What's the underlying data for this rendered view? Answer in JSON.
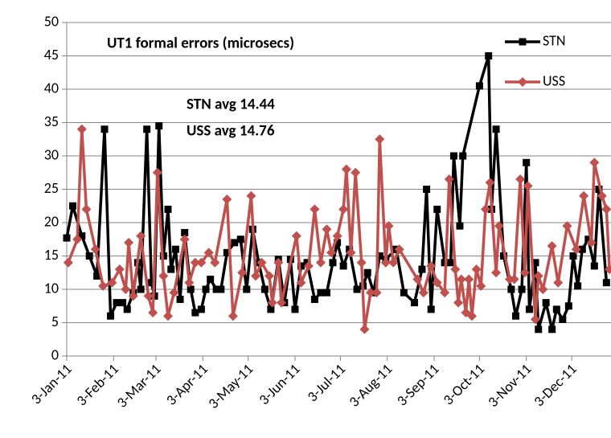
{
  "chart_data": {
    "type": "line",
    "title": "UT1 formal errors (microsecs)",
    "annotations": [
      "STN avg 14.44",
      "USS avg 14.76"
    ],
    "xlim": [
      "2011-01-03",
      "2011-12-29"
    ],
    "xticks": [
      {
        "value": "2011-01-03",
        "label": "3-Jan-11"
      },
      {
        "value": "2011-02-03",
        "label": "3-Feb-11"
      },
      {
        "value": "2011-03-03",
        "label": "3-Mar-11"
      },
      {
        "value": "2011-04-03",
        "label": "3-Apr-11"
      },
      {
        "value": "2011-05-03",
        "label": "3-May-11"
      },
      {
        "value": "2011-06-03",
        "label": "3-Jun-11"
      },
      {
        "value": "2011-07-03",
        "label": "3-Jul-11"
      },
      {
        "value": "2011-08-03",
        "label": "3-Aug-11"
      },
      {
        "value": "2011-09-03",
        "label": "3-Sep-11"
      },
      {
        "value": "2011-10-03",
        "label": "3-Oct-11"
      },
      {
        "value": "2011-11-03",
        "label": "3-Nov-11"
      },
      {
        "value": "2011-12-03",
        "label": "3-Dec-11"
      }
    ],
    "ylim": [
      0,
      50
    ],
    "yticks": [
      0,
      5,
      10,
      15,
      20,
      25,
      30,
      35,
      40,
      45,
      50
    ],
    "grid": true,
    "legend": "upper right",
    "series": [
      {
        "name": "STN",
        "color": "#000000",
        "marker": "square",
        "x": [
          "2011-01-03",
          "2011-01-07",
          "2011-01-13",
          "2011-01-18",
          "2011-01-23",
          "2011-01-28",
          "2011-02-01",
          "2011-02-05",
          "2011-02-09",
          "2011-02-12",
          "2011-02-16",
          "2011-02-19",
          "2011-02-21",
          "2011-02-25",
          "2011-02-28",
          "2011-03-02",
          "2011-03-05",
          "2011-03-08",
          "2011-03-11",
          "2011-03-13",
          "2011-03-16",
          "2011-03-19",
          "2011-03-22",
          "2011-03-26",
          "2011-03-29",
          "2011-04-02",
          "2011-04-05",
          "2011-04-08",
          "2011-04-12",
          "2011-04-15",
          "2011-04-19",
          "2011-04-24",
          "2011-04-28",
          "2011-05-02",
          "2011-05-06",
          "2011-05-10",
          "2011-05-14",
          "2011-05-18",
          "2011-05-23",
          "2011-05-27",
          "2011-05-31",
          "2011-06-03",
          "2011-06-07",
          "2011-06-11",
          "2011-06-16",
          "2011-06-20",
          "2011-06-24",
          "2011-06-28",
          "2011-07-01",
          "2011-07-05",
          "2011-07-09",
          "2011-07-14",
          "2011-07-18",
          "2011-07-21",
          "2011-07-25",
          "2011-07-29",
          "2011-08-02",
          "2011-08-09",
          "2011-08-14",
          "2011-08-21",
          "2011-08-26",
          "2011-08-29",
          "2011-09-01",
          "2011-09-05",
          "2011-09-10",
          "2011-09-14",
          "2011-09-16",
          "2011-09-20",
          "2011-09-22",
          "2011-10-03",
          "2011-10-09",
          "2011-10-11",
          "2011-10-14",
          "2011-10-19",
          "2011-10-24",
          "2011-10-27",
          "2011-10-31",
          "2011-11-03",
          "2011-11-05",
          "2011-11-09",
          "2011-11-11",
          "2011-11-16",
          "2011-11-20",
          "2011-11-23",
          "2011-11-27",
          "2011-12-01",
          "2011-12-04",
          "2011-12-07",
          "2011-12-10",
          "2011-12-14",
          "2011-12-18",
          "2011-12-21",
          "2011-12-26"
        ],
        "values": [
          17.7,
          22.5,
          18,
          15,
          12,
          34,
          6,
          8,
          8,
          7,
          9.5,
          14,
          10,
          34,
          11,
          9,
          34.5,
          15,
          22,
          13,
          16,
          8.5,
          18.5,
          10,
          6.5,
          7,
          10,
          11.5,
          10,
          10,
          15.5,
          17,
          17.5,
          10,
          19,
          14,
          10,
          7,
          14.5,
          8,
          14.5,
          7,
          13.5,
          14,
          8.5,
          9.5,
          9.5,
          14,
          17,
          13.5,
          16,
          10,
          10.5,
          12.5,
          9.5,
          15,
          14.5,
          16,
          9.5,
          8,
          13,
          25,
          7,
          22,
          14,
          14,
          30,
          19.5,
          30,
          40.5,
          45,
          22,
          34,
          15,
          10,
          6,
          10,
          29,
          7,
          14,
          4,
          8,
          4,
          7,
          5.5,
          7.5,
          15,
          10.5,
          16,
          17.5,
          13.5,
          25,
          11
        ]
      },
      {
        "name": "USS",
        "color": "#c0504d",
        "marker": "diamond",
        "x": [
          "2011-01-04",
          "2011-01-10",
          "2011-01-13",
          "2011-01-16",
          "2011-01-22",
          "2011-01-27",
          "2011-02-02",
          "2011-02-07",
          "2011-02-11",
          "2011-02-13",
          "2011-02-16",
          "2011-02-21",
          "2011-02-26",
          "2011-03-01",
          "2011-03-04",
          "2011-03-08",
          "2011-03-11",
          "2011-03-15",
          "2011-03-22",
          "2011-03-25",
          "2011-03-29",
          "2011-04-02",
          "2011-04-07",
          "2011-04-11",
          "2011-04-19",
          "2011-04-23",
          "2011-04-29",
          "2011-05-05",
          "2011-05-08",
          "2011-05-12",
          "2011-05-17",
          "2011-05-19",
          "2011-05-23",
          "2011-05-25",
          "2011-06-04",
          "2011-06-07",
          "2011-06-12",
          "2011-06-16",
          "2011-06-20",
          "2011-06-24",
          "2011-06-27",
          "2011-07-01",
          "2011-07-05",
          "2011-07-07",
          "2011-07-10",
          "2011-07-13",
          "2011-07-17",
          "2011-07-19",
          "2011-07-23",
          "2011-07-27",
          "2011-07-29",
          "2011-08-02",
          "2011-08-04",
          "2011-08-07",
          "2011-08-11",
          "2011-08-23",
          "2011-08-27",
          "2011-09-01",
          "2011-09-05",
          "2011-09-10",
          "2011-09-13",
          "2011-09-17",
          "2011-09-19",
          "2011-09-21",
          "2011-09-24",
          "2011-09-26",
          "2011-09-28",
          "2011-10-01",
          "2011-10-04",
          "2011-10-07",
          "2011-10-10",
          "2011-10-14",
          "2011-10-16",
          "2011-10-23",
          "2011-10-26",
          "2011-10-30",
          "2011-11-02",
          "2011-11-04",
          "2011-11-09",
          "2011-11-11",
          "2011-11-14",
          "2011-11-20",
          "2011-11-24",
          "2011-11-30",
          "2011-12-06",
          "2011-12-11",
          "2011-12-16",
          "2011-12-18",
          "2011-12-23",
          "2011-12-26",
          "2011-12-28"
        ],
        "values": [
          14,
          17.5,
          34,
          22,
          16,
          10.5,
          11,
          13,
          10,
          17,
          9,
          18,
          9,
          6.5,
          27.5,
          12,
          6,
          9.5,
          17.5,
          11,
          14,
          14,
          15.5,
          14,
          23.5,
          6,
          12.5,
          24,
          12,
          14,
          12,
          8,
          14,
          8,
          18,
          11,
          13.5,
          22,
          14,
          19,
          15.5,
          18,
          22,
          28,
          15.5,
          27.5,
          14,
          4,
          9.5,
          9.5,
          32.5,
          14,
          19.5,
          14,
          16,
          11.5,
          9.5,
          13.5,
          11,
          9.5,
          26.5,
          13,
          8,
          11.5,
          6.5,
          11.5,
          6,
          13,
          10.5,
          22,
          26,
          12.5,
          19.5,
          11.5,
          11.5,
          26.5,
          12.5,
          25.5,
          5.5,
          12,
          10,
          16.5,
          11,
          19.5,
          16,
          24,
          17,
          29,
          24,
          22,
          13
        ]
      }
    ]
  }
}
